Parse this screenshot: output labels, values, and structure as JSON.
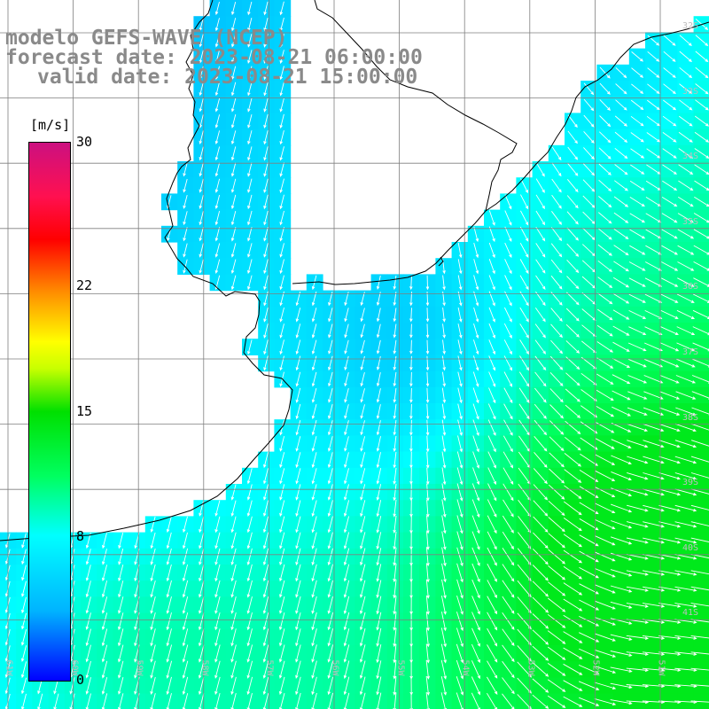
{
  "title": {
    "line1": "modelo GEFS-WAVE (NCEP)",
    "line2": "forecast date: 2023-08-21 06:00:00",
    "line3": "valid date: 2023-08-21 15:00:00"
  },
  "colorbar": {
    "unit": "[m/s]",
    "ticks": [
      {
        "label": "30",
        "value": 30
      },
      {
        "label": "22",
        "value": 22
      },
      {
        "label": "15",
        "value": 15
      },
      {
        "label": "8",
        "value": 8
      },
      {
        "label": "0",
        "value": 0
      }
    ],
    "min": 0,
    "max": 30
  },
  "lat_labels": [
    "32S",
    "33S",
    "34S",
    "35S",
    "36S",
    "37S",
    "38S",
    "39S",
    "40S",
    "41S"
  ],
  "lon_labels": [
    "61W",
    "60W",
    "59W",
    "58W",
    "57W",
    "56W",
    "55W",
    "54W",
    "53W",
    "52W",
    "51W"
  ],
  "colors": {
    "land": "#ffffff",
    "coast": "#000000",
    "grid": "#7f7f7f",
    "arrow": "#ffffff",
    "title": "#8a8a8a"
  }
}
